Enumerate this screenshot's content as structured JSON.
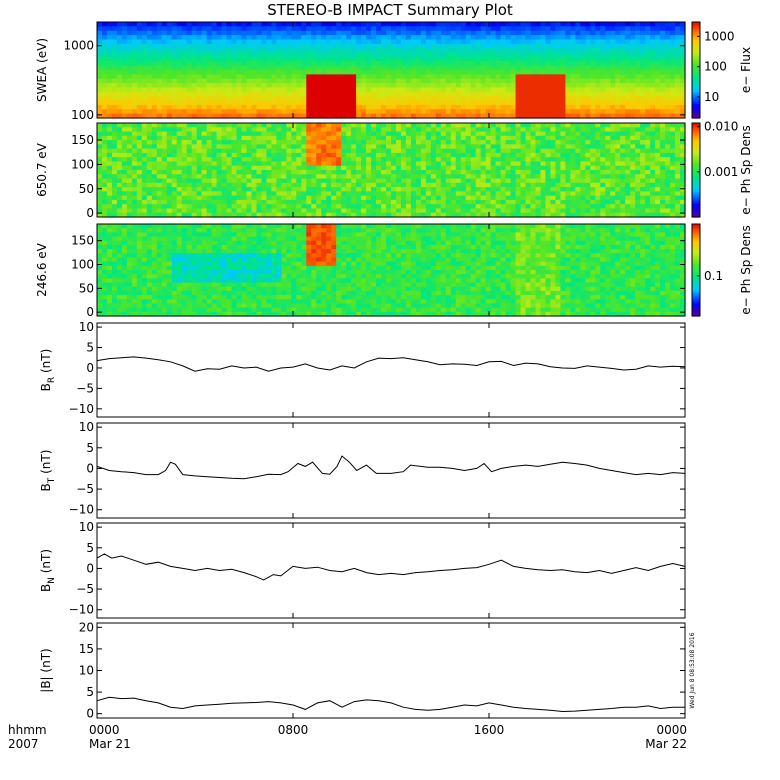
{
  "chart_data": {
    "title": "STEREO-B IMPACT Summary Plot",
    "time_axis": {
      "corner_labels": [
        "hhmm",
        "2007"
      ],
      "ticks": [
        {
          "hours": 0,
          "label": "0000",
          "sublabel": "Mar 21"
        },
        {
          "hours": 8,
          "label": "0800",
          "sublabel": ""
        },
        {
          "hours": 16,
          "label": "1600",
          "sublabel": ""
        },
        {
          "hours": 24,
          "label": "0000",
          "sublabel": "Mar 22"
        }
      ],
      "range_hours": [
        0,
        24
      ]
    },
    "stamp": "Wed Jun  8 08:53:08 2016",
    "spectrograms": [
      {
        "type": "heatmap",
        "ylabel": "SWEA (eV)",
        "y_scale": "log",
        "ylim": [
          90,
          2200
        ],
        "yticks": [
          {
            "value": 100,
            "label": "100"
          },
          {
            "value": 1000,
            "label": "1000"
          }
        ],
        "colorbar_label": "e− Flux",
        "colorbar_scale": "log",
        "colorbar_ticks": [
          {
            "value": 10,
            "label": "10"
          },
          {
            "value": 100,
            "label": "100"
          },
          {
            "value": 1000,
            "label": "1000"
          }
        ],
        "colorbar_range": [
          2,
          3000
        ],
        "enhancements": [
          {
            "start_hr": 8.5,
            "end_hr": 10.5,
            "level": 1.0
          },
          {
            "start_hr": 17.0,
            "end_hr": 19.2,
            "level": 0.75
          }
        ]
      },
      {
        "type": "heatmap",
        "ylabel": "650.7 eV",
        "y_scale": "linear",
        "ylim": [
          -8,
          185
        ],
        "yticks": [
          {
            "value": 0,
            "label": "0"
          },
          {
            "value": 50,
            "label": "50"
          },
          {
            "value": 100,
            "label": "100"
          },
          {
            "value": 150,
            "label": "150"
          }
        ],
        "colorbar_label": "e− Ph Sp Dens",
        "colorbar_scale": "log",
        "colorbar_ticks": [
          {
            "value": 0.001,
            "label": "0.001"
          },
          {
            "value": 0.01,
            "label": "0.010"
          }
        ],
        "colorbar_range": [
          0.0001,
          0.012
        ],
        "enhancements": [
          {
            "start_hr": 8.6,
            "end_hr": 10.0,
            "level": 1.0
          }
        ]
      },
      {
        "type": "heatmap",
        "ylabel": "246.6 eV",
        "y_scale": "linear",
        "ylim": [
          -8,
          185
        ],
        "yticks": [
          {
            "value": 0,
            "label": "0"
          },
          {
            "value": 50,
            "label": "50"
          },
          {
            "value": 100,
            "label": "100"
          },
          {
            "value": 150,
            "label": "150"
          }
        ],
        "colorbar_label": "e− Ph Sp Dens",
        "colorbar_scale": "log",
        "colorbar_ticks": [
          {
            "value": 0.1,
            "label": "0.1"
          }
        ],
        "colorbar_range": [
          0.02,
          0.8
        ],
        "enhancements": [
          {
            "start_hr": 8.6,
            "end_hr": 9.8,
            "level": 1.0
          }
        ]
      }
    ],
    "line_panels": [
      {
        "type": "line",
        "ylabel_main": "B",
        "ylabel_sub": "R",
        "ylabel_unit": " (nT)",
        "ylim": [
          -12,
          11
        ],
        "yticks": [
          {
            "value": -10,
            "label": "−10"
          },
          {
            "value": -5,
            "label": "−5"
          },
          {
            "value": 0,
            "label": "0"
          },
          {
            "value": 5,
            "label": "5"
          },
          {
            "value": 10,
            "label": "10"
          }
        ],
        "points": [
          [
            0,
            1.8
          ],
          [
            0.5,
            2.3
          ],
          [
            1,
            2.5
          ],
          [
            1.5,
            2.7
          ],
          [
            2,
            2.4
          ],
          [
            2.5,
            2.0
          ],
          [
            3,
            1.5
          ],
          [
            3.5,
            0.5
          ],
          [
            4,
            -0.8
          ],
          [
            4.5,
            -0.2
          ],
          [
            5,
            -0.3
          ],
          [
            5.5,
            0.5
          ],
          [
            6,
            0.0
          ],
          [
            6.5,
            0.2
          ],
          [
            7,
            -0.8
          ],
          [
            7.5,
            0.0
          ],
          [
            8,
            0.2
          ],
          [
            8.5,
            1.0
          ],
          [
            9,
            0.0
          ],
          [
            9.5,
            -0.5
          ],
          [
            10,
            0.5
          ],
          [
            10.5,
            0.0
          ],
          [
            11,
            1.5
          ],
          [
            11.5,
            2.4
          ],
          [
            12,
            2.3
          ],
          [
            12.5,
            2.5
          ],
          [
            13,
            2.0
          ],
          [
            13.5,
            1.5
          ],
          [
            14,
            0.8
          ],
          [
            14.5,
            1.0
          ],
          [
            15,
            0.9
          ],
          [
            15.5,
            0.6
          ],
          [
            16,
            1.5
          ],
          [
            16.5,
            1.6
          ],
          [
            17,
            0.6
          ],
          [
            17.5,
            1.2
          ],
          [
            18,
            1.0
          ],
          [
            18.5,
            0.3
          ],
          [
            19,
            0.0
          ],
          [
            19.5,
            -0.1
          ],
          [
            20,
            0.5
          ],
          [
            20.5,
            0.2
          ],
          [
            21,
            -0.1
          ],
          [
            21.5,
            -0.5
          ],
          [
            22,
            -0.3
          ],
          [
            22.5,
            0.5
          ],
          [
            23,
            0.2
          ],
          [
            23.5,
            0.4
          ],
          [
            24,
            0.3
          ]
        ]
      },
      {
        "type": "line",
        "ylabel_main": "B",
        "ylabel_sub": "T",
        "ylabel_unit": " (nT)",
        "ylim": [
          -12,
          11
        ],
        "yticks": [
          {
            "value": -10,
            "label": "−10"
          },
          {
            "value": -5,
            "label": "−5"
          },
          {
            "value": 0,
            "label": "0"
          },
          {
            "value": 5,
            "label": "5"
          },
          {
            "value": 10,
            "label": "10"
          }
        ],
        "points": [
          [
            0,
            0.5
          ],
          [
            0.5,
            -0.5
          ],
          [
            1,
            -0.8
          ],
          [
            1.5,
            -1.0
          ],
          [
            2,
            -1.5
          ],
          [
            2.5,
            -1.5
          ],
          [
            2.8,
            -0.5
          ],
          [
            3.0,
            1.5
          ],
          [
            3.2,
            1.0
          ],
          [
            3.5,
            -1.5
          ],
          [
            4,
            -1.8
          ],
          [
            4.5,
            -2.0
          ],
          [
            5,
            -2.2
          ],
          [
            5.5,
            -2.4
          ],
          [
            6,
            -2.5
          ],
          [
            6.5,
            -2.0
          ],
          [
            7,
            -1.4
          ],
          [
            7.5,
            -1.5
          ],
          [
            7.8,
            -0.8
          ],
          [
            8.2,
            1.2
          ],
          [
            8.5,
            0.5
          ],
          [
            8.8,
            1.5
          ],
          [
            9.2,
            -1.2
          ],
          [
            9.5,
            -1.4
          ],
          [
            9.8,
            0.5
          ],
          [
            10.0,
            3.0
          ],
          [
            10.3,
            1.5
          ],
          [
            10.6,
            -0.5
          ],
          [
            11.0,
            0.8
          ],
          [
            11.4,
            -1.2
          ],
          [
            12,
            -1.2
          ],
          [
            12.5,
            -0.8
          ],
          [
            12.8,
            0.8
          ],
          [
            13.5,
            0.3
          ],
          [
            14,
            0.3
          ],
          [
            14.5,
            0.0
          ],
          [
            15.0,
            -0.5
          ],
          [
            15.5,
            0.0
          ],
          [
            15.8,
            1.2
          ],
          [
            16.1,
            -0.8
          ],
          [
            16.5,
            0.0
          ],
          [
            17,
            0.5
          ],
          [
            17.5,
            0.8
          ],
          [
            18,
            0.5
          ],
          [
            18.5,
            1.0
          ],
          [
            19,
            1.5
          ],
          [
            19.5,
            1.2
          ],
          [
            20,
            0.8
          ],
          [
            20.5,
            0.0
          ],
          [
            21,
            -0.5
          ],
          [
            21.5,
            -1.0
          ],
          [
            22,
            -1.5
          ],
          [
            22.5,
            -1.2
          ],
          [
            23,
            -1.5
          ],
          [
            23.5,
            -1.0
          ],
          [
            24,
            -1.2
          ]
        ]
      },
      {
        "type": "line",
        "ylabel_main": "B",
        "ylabel_sub": "N",
        "ylabel_unit": " (nT)",
        "ylim": [
          -12,
          11
        ],
        "yticks": [
          {
            "value": -10,
            "label": "−10"
          },
          {
            "value": -5,
            "label": "−5"
          },
          {
            "value": 0,
            "label": "0"
          },
          {
            "value": 5,
            "label": "5"
          },
          {
            "value": 10,
            "label": "10"
          }
        ],
        "points": [
          [
            0,
            2.5
          ],
          [
            0.3,
            3.5
          ],
          [
            0.6,
            2.5
          ],
          [
            1,
            3.0
          ],
          [
            1.5,
            2.0
          ],
          [
            2,
            1.0
          ],
          [
            2.5,
            1.5
          ],
          [
            3,
            0.5
          ],
          [
            3.5,
            0.0
          ],
          [
            4,
            -0.5
          ],
          [
            4.5,
            0.0
          ],
          [
            5,
            -0.5
          ],
          [
            5.5,
            -0.2
          ],
          [
            6,
            -1.0
          ],
          [
            6.5,
            -2.0
          ],
          [
            6.8,
            -2.8
          ],
          [
            7.2,
            -1.5
          ],
          [
            7.5,
            -1.8
          ],
          [
            8,
            0.5
          ],
          [
            8.5,
            0.0
          ],
          [
            9,
            0.3
          ],
          [
            9.5,
            -0.5
          ],
          [
            10,
            -0.8
          ],
          [
            10.5,
            0.0
          ],
          [
            11,
            -1.0
          ],
          [
            11.5,
            -1.5
          ],
          [
            12,
            -1.2
          ],
          [
            12.5,
            -1.5
          ],
          [
            13,
            -1.0
          ],
          [
            13.5,
            -0.8
          ],
          [
            14,
            -0.5
          ],
          [
            14.5,
            -0.3
          ],
          [
            15,
            0.0
          ],
          [
            15.5,
            0.2
          ],
          [
            16,
            1.0
          ],
          [
            16.5,
            2.0
          ],
          [
            17,
            0.5
          ],
          [
            17.5,
            0.0
          ],
          [
            18,
            -0.3
          ],
          [
            18.5,
            -0.5
          ],
          [
            19,
            -0.3
          ],
          [
            19.5,
            -0.8
          ],
          [
            20,
            -1.0
          ],
          [
            20.5,
            -0.5
          ],
          [
            21,
            -1.2
          ],
          [
            21.5,
            -0.5
          ],
          [
            22,
            0.2
          ],
          [
            22.5,
            -0.5
          ],
          [
            23,
            0.5
          ],
          [
            23.5,
            1.2
          ],
          [
            24,
            0.5
          ]
        ]
      },
      {
        "type": "line",
        "ylabel_main": "|B|",
        "ylabel_sub": "",
        "ylabel_unit": " (nT)",
        "ylim": [
          -1,
          21
        ],
        "yticks": [
          {
            "value": 0,
            "label": "0"
          },
          {
            "value": 5,
            "label": "5"
          },
          {
            "value": 10,
            "label": "10"
          },
          {
            "value": 15,
            "label": "15"
          },
          {
            "value": 20,
            "label": "20"
          }
        ],
        "points": [
          [
            0,
            3.0
          ],
          [
            0.5,
            3.8
          ],
          [
            1,
            3.5
          ],
          [
            1.5,
            3.6
          ],
          [
            2,
            3.0
          ],
          [
            2.5,
            2.5
          ],
          [
            3,
            1.5
          ],
          [
            3.5,
            1.2
          ],
          [
            4,
            1.8
          ],
          [
            4.5,
            2.0
          ],
          [
            5,
            2.2
          ],
          [
            5.5,
            2.4
          ],
          [
            6,
            2.5
          ],
          [
            6.5,
            2.6
          ],
          [
            7,
            2.8
          ],
          [
            7.5,
            2.5
          ],
          [
            8,
            2.0
          ],
          [
            8.5,
            1.0
          ],
          [
            9,
            2.5
          ],
          [
            9.5,
            3.0
          ],
          [
            10,
            1.5
          ],
          [
            10.5,
            2.8
          ],
          [
            11,
            3.2
          ],
          [
            11.5,
            3.0
          ],
          [
            12,
            2.5
          ],
          [
            12.5,
            1.5
          ],
          [
            13,
            1.0
          ],
          [
            13.5,
            0.8
          ],
          [
            14,
            1.0
          ],
          [
            14.5,
            1.5
          ],
          [
            15,
            2.0
          ],
          [
            15.5,
            1.8
          ],
          [
            16,
            2.5
          ],
          [
            16.5,
            2.0
          ],
          [
            17,
            1.5
          ],
          [
            17.5,
            1.2
          ],
          [
            18,
            1.0
          ],
          [
            18.5,
            0.8
          ],
          [
            19,
            0.5
          ],
          [
            19.5,
            0.6
          ],
          [
            20,
            0.8
          ],
          [
            20.5,
            1.0
          ],
          [
            21,
            1.2
          ],
          [
            21.5,
            1.5
          ],
          [
            22,
            1.5
          ],
          [
            22.5,
            1.8
          ],
          [
            23,
            1.2
          ],
          [
            23.5,
            1.5
          ],
          [
            24,
            1.5
          ]
        ]
      }
    ]
  }
}
